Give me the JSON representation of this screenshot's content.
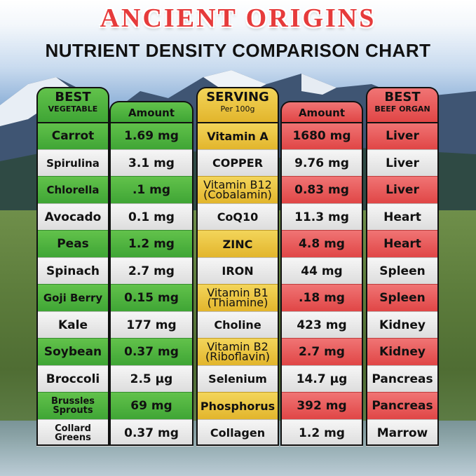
{
  "title": "ANCIENT ORIGINS",
  "subtitle": "NUTRIENT DENSITY COMPARISON CHART",
  "headers": {
    "vegetable": {
      "line1": "BEST",
      "line2": "VEGETABLE"
    },
    "veg_amount": {
      "line1": "Amount"
    },
    "serving": {
      "line1": "SERVING",
      "line2": "Per 100g"
    },
    "organ_amount": {
      "line1": "Amount"
    },
    "organ": {
      "line1": "BEST",
      "line2": "BEEF ORGAN"
    }
  },
  "rows": [
    {
      "vegetable": "Carrot",
      "veg_amount": "1.69 mg",
      "nutrient": "Vitamin A",
      "nutrient_sub": "",
      "organ_amount": "1680 mg",
      "organ": "Liver"
    },
    {
      "vegetable": "Spirulina",
      "veg_amount": "3.1 mg",
      "nutrient": "COPPER",
      "nutrient_sub": "",
      "organ_amount": "9.76 mg",
      "organ": "Liver"
    },
    {
      "vegetable": "Chlorella",
      "veg_amount": ".1 mg",
      "nutrient": "Vitamin B12",
      "nutrient_sub": "(Cobalamin)",
      "organ_amount": "0.83 mg",
      "organ": "Liver"
    },
    {
      "vegetable": "Avocado",
      "veg_amount": "0.1 mg",
      "nutrient": "CoQ10",
      "nutrient_sub": "",
      "organ_amount": "11.3 mg",
      "organ": "Heart"
    },
    {
      "vegetable": "Peas",
      "veg_amount": "1.2 mg",
      "nutrient": "ZINC",
      "nutrient_sub": "",
      "organ_amount": "4.8 mg",
      "organ": "Heart"
    },
    {
      "vegetable": "Spinach",
      "veg_amount": "2.7 mg",
      "nutrient": "IRON",
      "nutrient_sub": "",
      "organ_amount": "44 mg",
      "organ": "Spleen"
    },
    {
      "vegetable": "Goji Berry",
      "veg_amount": "0.15 mg",
      "nutrient": "Vitamin B1",
      "nutrient_sub": "(Thiamine)",
      "organ_amount": ".18 mg",
      "organ": "Spleen"
    },
    {
      "vegetable": "Kale",
      "veg_amount": "177 mg",
      "nutrient": "Choline",
      "nutrient_sub": "",
      "organ_amount": "423 mg",
      "organ": "Kidney"
    },
    {
      "vegetable": "Soybean",
      "veg_amount": "0.37 mg",
      "nutrient": "Vitamin B2",
      "nutrient_sub": "(Riboflavin)",
      "organ_amount": "2.7 mg",
      "organ": "Kidney"
    },
    {
      "vegetable": "Broccoli",
      "veg_amount": "2.5 µg",
      "nutrient": "Selenium",
      "nutrient_sub": "",
      "organ_amount": "14.7 µg",
      "organ": "Pancreas"
    },
    {
      "vegetable": "Brussles",
      "vegetable_line2": "Sprouts",
      "veg_amount": "69 mg",
      "nutrient": "Phosphorus",
      "nutrient_sub": "",
      "organ_amount": "392 mg",
      "organ": "Pancreas"
    },
    {
      "vegetable": "Collard",
      "vegetable_line2": "Greens",
      "veg_amount": "0.37  mg",
      "nutrient": "Collagen",
      "nutrient_sub": "",
      "organ_amount": "1.2 mg",
      "organ": "Marrow"
    }
  ],
  "colors": {
    "title_red": "#e63b3b",
    "vegetable_green": "#4cb13e",
    "serving_yellow": "#ecc43f",
    "organ_red": "#e85555",
    "alt_row_gray": "#e8e8e8"
  }
}
